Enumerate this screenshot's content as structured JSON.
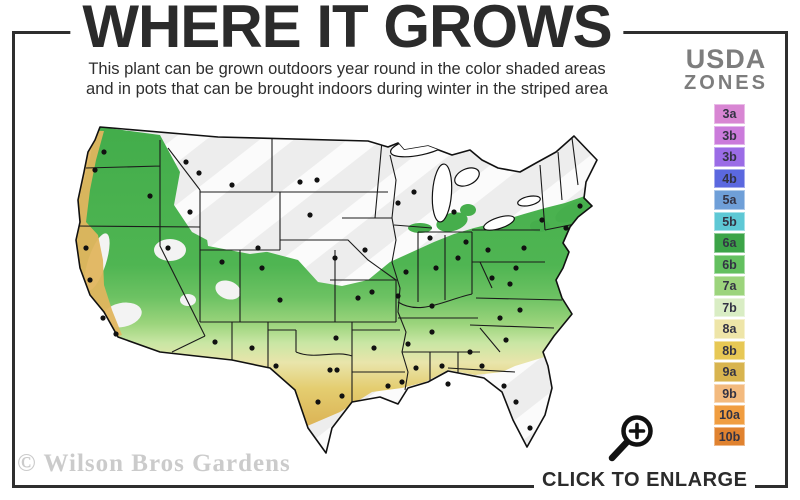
{
  "header": {
    "title": "WHERE IT GROWS",
    "subtitle_line1": "This plant can be grown outdoors year round in the color shaded areas",
    "subtitle_line2": "and in pots that can be brought indoors during winter in the striped area"
  },
  "legend": {
    "heading_line1": "USDA",
    "heading_line2": "ZONES",
    "zones": [
      {
        "label": "3a",
        "color": "#d886d3"
      },
      {
        "label": "3b",
        "color": "#cb7bdb"
      },
      {
        "label": "3b",
        "color": "#9b6ce6"
      },
      {
        "label": "4b",
        "color": "#5b68df"
      },
      {
        "label": "5a",
        "color": "#6f9fd8"
      },
      {
        "label": "5b",
        "color": "#5ec8d5"
      },
      {
        "label": "6a",
        "color": "#3ca448"
      },
      {
        "label": "6b",
        "color": "#63c05f"
      },
      {
        "label": "7a",
        "color": "#9cd47c"
      },
      {
        "label": "7b",
        "color": "#d9edc4"
      },
      {
        "label": "8a",
        "color": "#eee5a8"
      },
      {
        "label": "8b",
        "color": "#e7c855"
      },
      {
        "label": "9a",
        "color": "#d8b44f"
      },
      {
        "label": "9b",
        "color": "#f3ba7e"
      },
      {
        "label": "10a",
        "color": "#f09d40"
      },
      {
        "label": "10b",
        "color": "#e0822f"
      }
    ]
  },
  "map": {
    "striped_area_color": "#ededed",
    "grow_gradient_top_color": "#43ad4b",
    "grow_gradient_bottom_color": "#e2a44c",
    "coast_band_color": "#e0b55e",
    "city_dot_color": "#111111"
  },
  "footer": {
    "watermark": "© Wilson Bros Gardens",
    "enlarge_label": "CLICK TO ENLARGE"
  }
}
